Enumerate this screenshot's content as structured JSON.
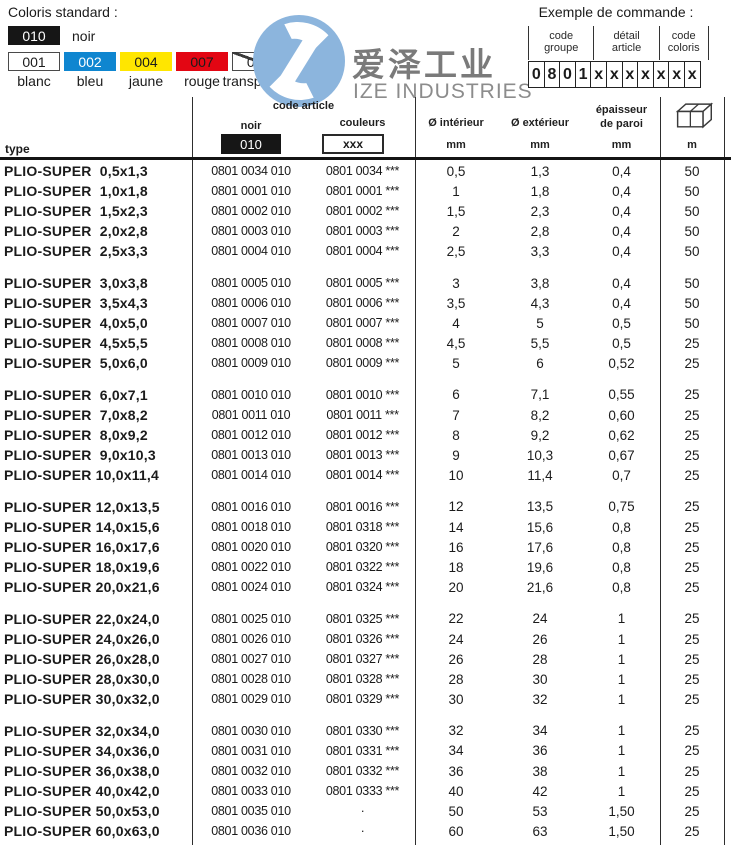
{
  "colors": {
    "accent_blue": "#0f86d0",
    "accent_yellow": "#ffe600",
    "accent_red": "#e30613",
    "swatch_black": "#161616",
    "logo_blue": "#8cb5dd",
    "logo_gray": "#7a7a7a"
  },
  "coloris_standard": {
    "title": "Coloris standard :",
    "primary": {
      "code": "010",
      "label": "noir"
    },
    "swatches": [
      {
        "code": "001",
        "label": "blanc",
        "bg": "#ffffff",
        "fg": "#1b1b1b",
        "border": true,
        "strikethrough": false
      },
      {
        "code": "002",
        "label": "bleu",
        "bg": "#0f86d0",
        "fg": "#ffffff",
        "border": false,
        "strikethrough": false
      },
      {
        "code": "004",
        "label": "jaune",
        "bg": "#ffe600",
        "fg": "#1b1b1b",
        "border": false,
        "strikethrough": false
      },
      {
        "code": "007",
        "label": "rouge",
        "bg": "#e30613",
        "fg": "#1b1b1b",
        "border": false,
        "strikethrough": false
      },
      {
        "code": "011",
        "label": "transparent",
        "bg": "#ffffff",
        "fg": "#1b1b1b",
        "border": true,
        "strikethrough": true
      }
    ]
  },
  "logo": {
    "cn": "爱泽工业",
    "en": "IZE INDUSTRIES",
    "mark": "pinwheel-circle-icon"
  },
  "order_example": {
    "title": "Exemple de commande :",
    "groups": [
      {
        "label_line1": "code",
        "label_line2": "groupe",
        "cells": [
          "0",
          "8",
          "0",
          "1"
        ]
      },
      {
        "label_line1": "détail",
        "label_line2": "article",
        "cells": [
          "x",
          "x",
          "x",
          "x"
        ]
      },
      {
        "label_line1": "code",
        "label_line2": "coloris",
        "cells": [
          "x",
          "x",
          "x"
        ]
      }
    ]
  },
  "table": {
    "col_type": "type",
    "code_article": "code article",
    "noir_label": "noir",
    "noir_code": "010",
    "couleurs_label": "couleurs",
    "couleurs_code": "xxx",
    "col_inner": "Ø intérieur",
    "col_outer": "Ø extérieur",
    "col_wall_line1": "épaisseur",
    "col_wall_line2": "de paroi",
    "unit_mm": "mm",
    "col_length_unit": "m",
    "length_icon": "carton-box-icon",
    "groups": [
      [
        [
          "PLIO-SUPER  0,5x1,3",
          "0801 0034 010",
          "0801 0034 ***",
          "0,5",
          "1,3",
          "0,4",
          "50"
        ],
        [
          "PLIO-SUPER  1,0x1,8",
          "0801 0001 010",
          "0801 0001 ***",
          "1",
          "1,8",
          "0,4",
          "50"
        ],
        [
          "PLIO-SUPER  1,5x2,3",
          "0801 0002 010",
          "0801 0002 ***",
          "1,5",
          "2,3",
          "0,4",
          "50"
        ],
        [
          "PLIO-SUPER  2,0x2,8",
          "0801 0003 010",
          "0801 0003 ***",
          "2",
          "2,8",
          "0,4",
          "50"
        ],
        [
          "PLIO-SUPER  2,5x3,3",
          "0801 0004 010",
          "0801 0004 ***",
          "2,5",
          "3,3",
          "0,4",
          "50"
        ]
      ],
      [
        [
          "PLIO-SUPER  3,0x3,8",
          "0801 0005 010",
          "0801 0005 ***",
          "3",
          "3,8",
          "0,4",
          "50"
        ],
        [
          "PLIO-SUPER  3,5x4,3",
          "0801 0006 010",
          "0801 0006 ***",
          "3,5",
          "4,3",
          "0,4",
          "50"
        ],
        [
          "PLIO-SUPER  4,0x5,0",
          "0801 0007 010",
          "0801 0007 ***",
          "4",
          "5",
          "0,5",
          "50"
        ],
        [
          "PLIO-SUPER  4,5x5,5",
          "0801 0008 010",
          "0801 0008 ***",
          "4,5",
          "5,5",
          "0,5",
          "25"
        ],
        [
          "PLIO-SUPER  5,0x6,0",
          "0801 0009 010",
          "0801 0009 ***",
          "5",
          "6",
          "0,52",
          "25"
        ]
      ],
      [
        [
          "PLIO-SUPER  6,0x7,1",
          "0801 0010 010",
          "0801 0010 ***",
          "6",
          "7,1",
          "0,55",
          "25"
        ],
        [
          "PLIO-SUPER  7,0x8,2",
          "0801 0011 010",
          "0801 0011 ***",
          "7",
          "8,2",
          "0,60",
          "25"
        ],
        [
          "PLIO-SUPER  8,0x9,2",
          "0801 0012 010",
          "0801 0012 ***",
          "8",
          "9,2",
          "0,62",
          "25"
        ],
        [
          "PLIO-SUPER  9,0x10,3",
          "0801 0013 010",
          "0801 0013 ***",
          "9",
          "10,3",
          "0,67",
          "25"
        ],
        [
          "PLIO-SUPER 10,0x11,4",
          "0801 0014 010",
          "0801 0014 ***",
          "10",
          "11,4",
          "0,7",
          "25"
        ]
      ],
      [
        [
          "PLIO-SUPER 12,0x13,5",
          "0801 0016 010",
          "0801 0016 ***",
          "12",
          "13,5",
          "0,75",
          "25"
        ],
        [
          "PLIO-SUPER 14,0x15,6",
          "0801 0018 010",
          "0801 0318 ***",
          "14",
          "15,6",
          "0,8",
          "25"
        ],
        [
          "PLIO-SUPER 16,0x17,6",
          "0801 0020 010",
          "0801 0320 ***",
          "16",
          "17,6",
          "0,8",
          "25"
        ],
        [
          "PLIO-SUPER 18,0x19,6",
          "0801 0022 010",
          "0801 0322 ***",
          "18",
          "19,6",
          "0,8",
          "25"
        ],
        [
          "PLIO-SUPER 20,0x21,6",
          "0801 0024 010",
          "0801 0324 ***",
          "20",
          "21,6",
          "0,8",
          "25"
        ]
      ],
      [
        [
          "PLIO-SUPER 22,0x24,0",
          "0801 0025 010",
          "0801 0325 ***",
          "22",
          "24",
          "1",
          "25"
        ],
        [
          "PLIO-SUPER 24,0x26,0",
          "0801 0026 010",
          "0801 0326 ***",
          "24",
          "26",
          "1",
          "25"
        ],
        [
          "PLIO-SUPER 26,0x28,0",
          "0801 0027 010",
          "0801 0327 ***",
          "26",
          "28",
          "1",
          "25"
        ],
        [
          "PLIO-SUPER 28,0x30,0",
          "0801 0028 010",
          "0801 0328 ***",
          "28",
          "30",
          "1",
          "25"
        ],
        [
          "PLIO-SUPER 30,0x32,0",
          "0801 0029 010",
          "0801 0329 ***",
          "30",
          "32",
          "1",
          "25"
        ]
      ],
      [
        [
          "PLIO-SUPER 32,0x34,0",
          "0801 0030 010",
          "0801 0330 ***",
          "32",
          "34",
          "1",
          "25"
        ],
        [
          "PLIO-SUPER 34,0x36,0",
          "0801 0031 010",
          "0801 0331 ***",
          "34",
          "36",
          "1",
          "25"
        ],
        [
          "PLIO-SUPER 36,0x38,0",
          "0801 0032 010",
          "0801 0332 ***",
          "36",
          "38",
          "1",
          "25"
        ],
        [
          "PLIO-SUPER 40,0x42,0",
          "0801 0033 010",
          "0801 0333 ***",
          "40",
          "42",
          "1",
          "25"
        ],
        [
          "PLIO-SUPER 50,0x53,0",
          "0801 0035 010",
          "·",
          "50",
          "53",
          "1,50",
          "25"
        ],
        [
          "PLIO-SUPER 60,0x63,0",
          "0801 0036 010",
          "·",
          "60",
          "63",
          "1,50",
          "25"
        ]
      ]
    ]
  }
}
